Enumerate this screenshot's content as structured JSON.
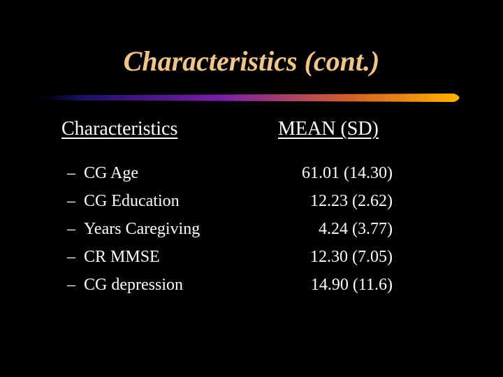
{
  "slide": {
    "title": "Characteristics (cont.)",
    "column_headers": {
      "left": "Characteristics",
      "right": "MEAN (SD)"
    },
    "rows": [
      {
        "label": "CG Age",
        "value": "61.01 (14.30)"
      },
      {
        "label": "CG Education",
        "value": "12.23 (2.62)"
      },
      {
        "label": "Years Caregiving",
        "value": "4.24 (3.77)"
      },
      {
        "label": "CR MMSE",
        "value": "12.30 (7.05)"
      },
      {
        "label": "CG depression",
        "value": "14.90 (11.6)"
      }
    ],
    "colors": {
      "background": "#000000",
      "title": "#f2c48c",
      "text": "#ffffff",
      "divider_start": "#000033",
      "divider_mid": "#7a1fa8",
      "divider_end": "#ffb300"
    }
  }
}
